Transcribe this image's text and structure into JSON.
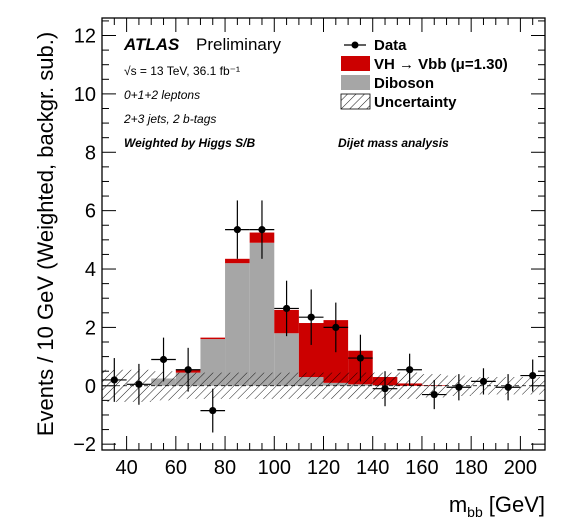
{
  "chart_data": {
    "type": "bar",
    "stacked": true,
    "xlabel_main": "m",
    "xlabel_sub": "bb",
    "xlabel_unit": "[GeV]",
    "ylabel": "Events / 10 GeV (Weighted, backgr. sub.)",
    "xlim": [
      30,
      210
    ],
    "ylim": [
      -2.2,
      12.6
    ],
    "xticks": [
      40,
      60,
      80,
      100,
      120,
      140,
      160,
      180,
      200
    ],
    "yticks": [
      -2,
      0,
      2,
      4,
      6,
      8,
      10,
      12
    ],
    "bin_edges": [
      30,
      40,
      50,
      60,
      70,
      80,
      90,
      100,
      110,
      120,
      130,
      140,
      150,
      160,
      170,
      180,
      190,
      200,
      210
    ],
    "series": [
      {
        "name": "Diboson",
        "color": "#a6a6a6",
        "values": [
          0.0,
          0.0,
          0.25,
          0.45,
          1.6,
          4.2,
          4.9,
          1.8,
          0.3,
          0.1,
          0.05,
          0.02,
          0.0,
          0.0,
          0.0,
          0.0,
          0.0,
          0.0
        ]
      },
      {
        "name": "VH → Vbb (μ=1.30)",
        "color": "#cc0000",
        "values": [
          0.0,
          0.0,
          0.0,
          0.1,
          0.05,
          0.15,
          0.35,
          0.8,
          1.85,
          2.15,
          1.15,
          0.28,
          0.08,
          0.02,
          0.0,
          0.0,
          0.0,
          0.0
        ]
      }
    ],
    "uncertainty_band": {
      "name": "Uncertainty",
      "half_width": [
        0.55,
        0.55,
        0.5,
        0.45,
        0.45,
        0.45,
        0.45,
        0.45,
        0.45,
        0.45,
        0.45,
        0.45,
        0.45,
        0.4,
        0.35,
        0.3,
        0.3,
        0.3
      ]
    },
    "data": {
      "name": "Data",
      "x": [
        35,
        45,
        55,
        65,
        75,
        85,
        95,
        105,
        115,
        125,
        135,
        145,
        155,
        165,
        175,
        185,
        195,
        205
      ],
      "y": [
        0.2,
        0.05,
        0.9,
        0.55,
        -0.85,
        5.35,
        5.35,
        2.65,
        2.35,
        2.0,
        0.95,
        -0.1,
        0.55,
        -0.3,
        -0.05,
        0.15,
        -0.05,
        0.35
      ],
      "yerr": [
        0.75,
        0.7,
        0.75,
        0.75,
        0.75,
        1.0,
        1.0,
        0.95,
        0.95,
        0.85,
        0.8,
        0.6,
        0.55,
        0.5,
        0.45,
        0.45,
        0.45,
        0.55
      ]
    },
    "annotations": {
      "atlas": "ATLAS",
      "preliminary": "Preliminary",
      "energy": "√s = 13 TeV, 36.1 fb⁻¹",
      "leptons": "0+1+2 leptons",
      "jets": "2+3 jets, 2 b-tags",
      "weighted": "Weighted by Higgs S/B",
      "analysis": "Dijet mass analysis"
    },
    "legend_position": "top-right",
    "legend": [
      "Data",
      "VH  → Vbb (μ=1.30)",
      "Diboson",
      "Uncertainty"
    ]
  }
}
